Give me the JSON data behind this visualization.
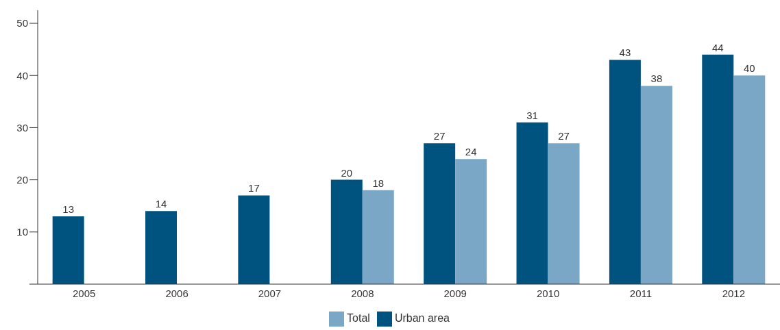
{
  "chart_data": {
    "type": "bar",
    "categories": [
      "2005",
      "2006",
      "2007",
      "2008",
      "2009",
      "2010",
      "2011",
      "2012"
    ],
    "series": [
      {
        "name": "Urban area",
        "color": "#00537f",
        "values": [
          13,
          14,
          17,
          20,
          27,
          31,
          43,
          44
        ]
      },
      {
        "name": "Total",
        "color": "#7ba7c7",
        "values": [
          null,
          null,
          null,
          18,
          24,
          27,
          38,
          40
        ]
      }
    ],
    "ylim": [
      0,
      52.5
    ],
    "yticks": [
      {
        "value": 0,
        "label": null
      },
      10,
      20,
      30,
      40,
      50
    ],
    "grid": false,
    "legend": "bottom",
    "data_labels": true
  }
}
